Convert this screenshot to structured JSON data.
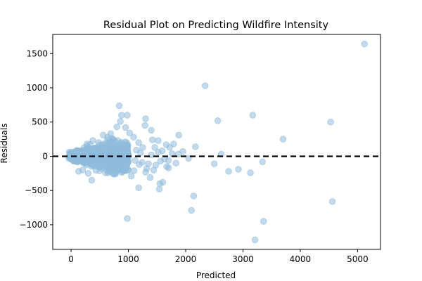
{
  "chart_data": {
    "type": "scatter",
    "title": "Residual Plot on Predicting Wildfire Intensity",
    "xlabel": "Predicted",
    "ylabel": "Residuals",
    "xlim": [
      -320,
      5400
    ],
    "ylim": [
      -1360,
      1780
    ],
    "xticks": [
      0,
      1000,
      2000,
      3000,
      4000,
      5000
    ],
    "yticks": [
      -1000,
      -500,
      0,
      500,
      1000,
      1500
    ],
    "reference_line": {
      "y": 0,
      "style": "dashed",
      "color": "#000000"
    },
    "grid": false,
    "colors": {
      "points": "#8fbcdc",
      "point_alpha": 0.55
    },
    "cluster": {
      "x_range": [
        0,
        1000
      ],
      "residual_spread": 320,
      "count": 1100
    },
    "points": [
      [
        5120,
        1640
      ],
      [
        2340,
        1030
      ],
      [
        840,
        740
      ],
      [
        880,
        600
      ],
      [
        980,
        600
      ],
      [
        1300,
        550
      ],
      [
        1290,
        450
      ],
      [
        1400,
        380
      ],
      [
        1420,
        240
      ],
      [
        1520,
        230
      ],
      [
        1660,
        170
      ],
      [
        1720,
        130
      ],
      [
        1790,
        180
      ],
      [
        1880,
        310
      ],
      [
        1950,
        70
      ],
      [
        2050,
        -30
      ],
      [
        2170,
        140
      ],
      [
        2560,
        520
      ],
      [
        3170,
        600
      ],
      [
        3700,
        250
      ],
      [
        4530,
        500
      ],
      [
        4560,
        -660
      ],
      [
        2620,
        30
      ],
      [
        2500,
        -110
      ],
      [
        2750,
        -220
      ],
      [
        2920,
        -190
      ],
      [
        3130,
        -240
      ],
      [
        3340,
        -80
      ],
      [
        3210,
        -1220
      ],
      [
        3360,
        -950
      ],
      [
        2140,
        -580
      ],
      [
        2100,
        -790
      ],
      [
        980,
        -910
      ],
      [
        1550,
        -400
      ],
      [
        1600,
        -380
      ],
      [
        1540,
        -480
      ],
      [
        1380,
        -310
      ],
      [
        1180,
        -460
      ],
      [
        1320,
        -180
      ],
      [
        1440,
        -200
      ],
      [
        1700,
        -170
      ],
      [
        1830,
        -100
      ],
      [
        1870,
        30
      ],
      [
        1760,
        40
      ],
      [
        1630,
        -40
      ],
      [
        1670,
        -150
      ],
      [
        1480,
        -130
      ],
      [
        1350,
        -110
      ],
      [
        1240,
        -90
      ],
      [
        1100,
        -210
      ],
      [
        1050,
        -290
      ],
      [
        1120,
        -60
      ],
      [
        1400,
        20
      ],
      [
        1520,
        60
      ],
      [
        1250,
        130
      ],
      [
        1180,
        200
      ],
      [
        1090,
        280
      ],
      [
        1020,
        340
      ],
      [
        950,
        420
      ],
      [
        800,
        430
      ],
      [
        860,
        510
      ],
      [
        690,
        330
      ],
      [
        720,
        260
      ],
      [
        640,
        280
      ],
      [
        560,
        310
      ],
      [
        480,
        200
      ],
      [
        380,
        230
      ],
      [
        280,
        180
      ],
      [
        360,
        -350
      ],
      [
        300,
        -250
      ],
      [
        200,
        -200
      ],
      [
        130,
        -220
      ],
      [
        500,
        -210
      ],
      [
        600,
        -240
      ],
      [
        700,
        -230
      ],
      [
        750,
        -260
      ],
      [
        820,
        -200
      ],
      [
        900,
        -180
      ],
      [
        1000,
        -200
      ],
      [
        -30,
        60
      ],
      [
        60,
        30
      ],
      [
        1460,
        130
      ],
      [
        1560,
        -70
      ],
      [
        1300,
        -230
      ],
      [
        1190,
        -120
      ],
      [
        1590,
        80
      ],
      [
        1700,
        -60
      ],
      [
        1210,
        50
      ],
      [
        1140,
        90
      ]
    ]
  }
}
